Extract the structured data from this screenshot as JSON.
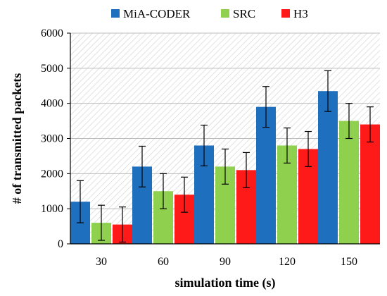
{
  "chart_data": {
    "type": "bar",
    "title": "",
    "xlabel": "simulation time (s)",
    "ylabel": "# of transmitted packets",
    "categories": [
      "30",
      "60",
      "90",
      "120",
      "150"
    ],
    "ylim": [
      0,
      6000
    ],
    "yticks": [
      "0",
      "1000",
      "2000",
      "3000",
      "4000",
      "5000",
      "6000"
    ],
    "grid": "horizontal hatched background",
    "legend": "top",
    "series": [
      {
        "name": "MiA-CODER",
        "color": "#1f6fbf",
        "values": [
          1200,
          2200,
          2800,
          3900,
          4350
        ],
        "error": [
          600,
          580,
          580,
          580,
          580
        ]
      },
      {
        "name": "SRC",
        "color": "#8fd14f",
        "values": [
          600,
          1500,
          2200,
          2800,
          3500
        ],
        "error": [
          500,
          500,
          500,
          500,
          500
        ]
      },
      {
        "name": "H3",
        "color": "#ff1a1a",
        "values": [
          550,
          1400,
          2100,
          2700,
          3400
        ],
        "error": [
          500,
          500,
          500,
          500,
          500
        ]
      }
    ]
  }
}
